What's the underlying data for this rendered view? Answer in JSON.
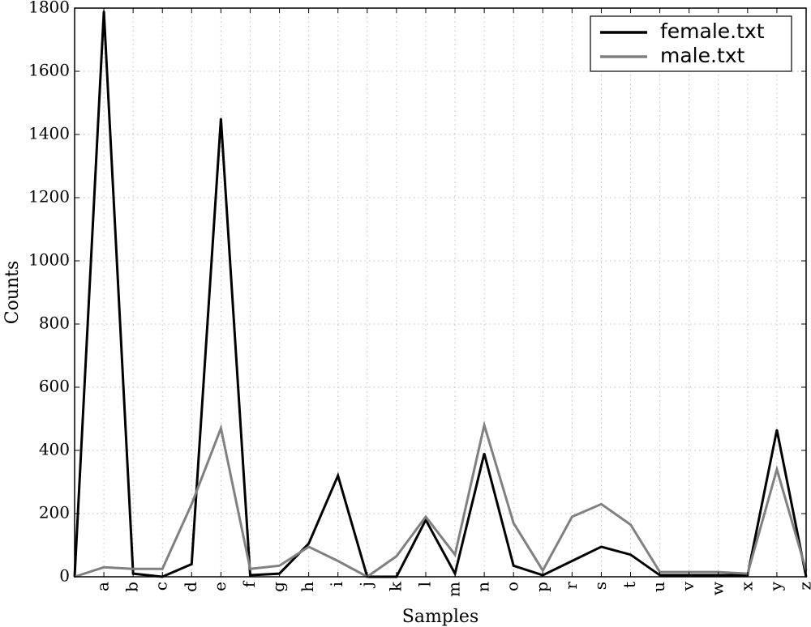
{
  "chart_data": {
    "type": "line",
    "title": "",
    "xlabel": "Samples",
    "ylabel": "Counts",
    "categories": [
      "",
      "a",
      "b",
      "c",
      "d",
      "e",
      "f",
      "g",
      "h",
      "i",
      "j",
      "k",
      "l",
      "m",
      "n",
      "o",
      "p",
      "r",
      "s",
      "t",
      "u",
      "v",
      "w",
      "x",
      "y",
      "z"
    ],
    "ylim": [
      0,
      1800
    ],
    "yticks": [
      0,
      200,
      400,
      600,
      800,
      1000,
      1200,
      1400,
      1600,
      1800
    ],
    "grid": true,
    "legend_position": "top-right",
    "series": [
      {
        "name": "female.txt",
        "color": "#000000",
        "values": [
          0,
          1790,
          10,
          0,
          40,
          1450,
          5,
          10,
          105,
          320,
          0,
          0,
          180,
          10,
          390,
          35,
          5,
          50,
          95,
          70,
          5,
          5,
          5,
          5,
          465,
          0
        ]
      },
      {
        "name": "male.txt",
        "color": "#808080",
        "values": [
          0,
          30,
          25,
          25,
          230,
          470,
          25,
          35,
          95,
          50,
          0,
          65,
          190,
          70,
          480,
          170,
          20,
          190,
          230,
          165,
          15,
          15,
          15,
          10,
          340,
          20
        ]
      }
    ]
  }
}
